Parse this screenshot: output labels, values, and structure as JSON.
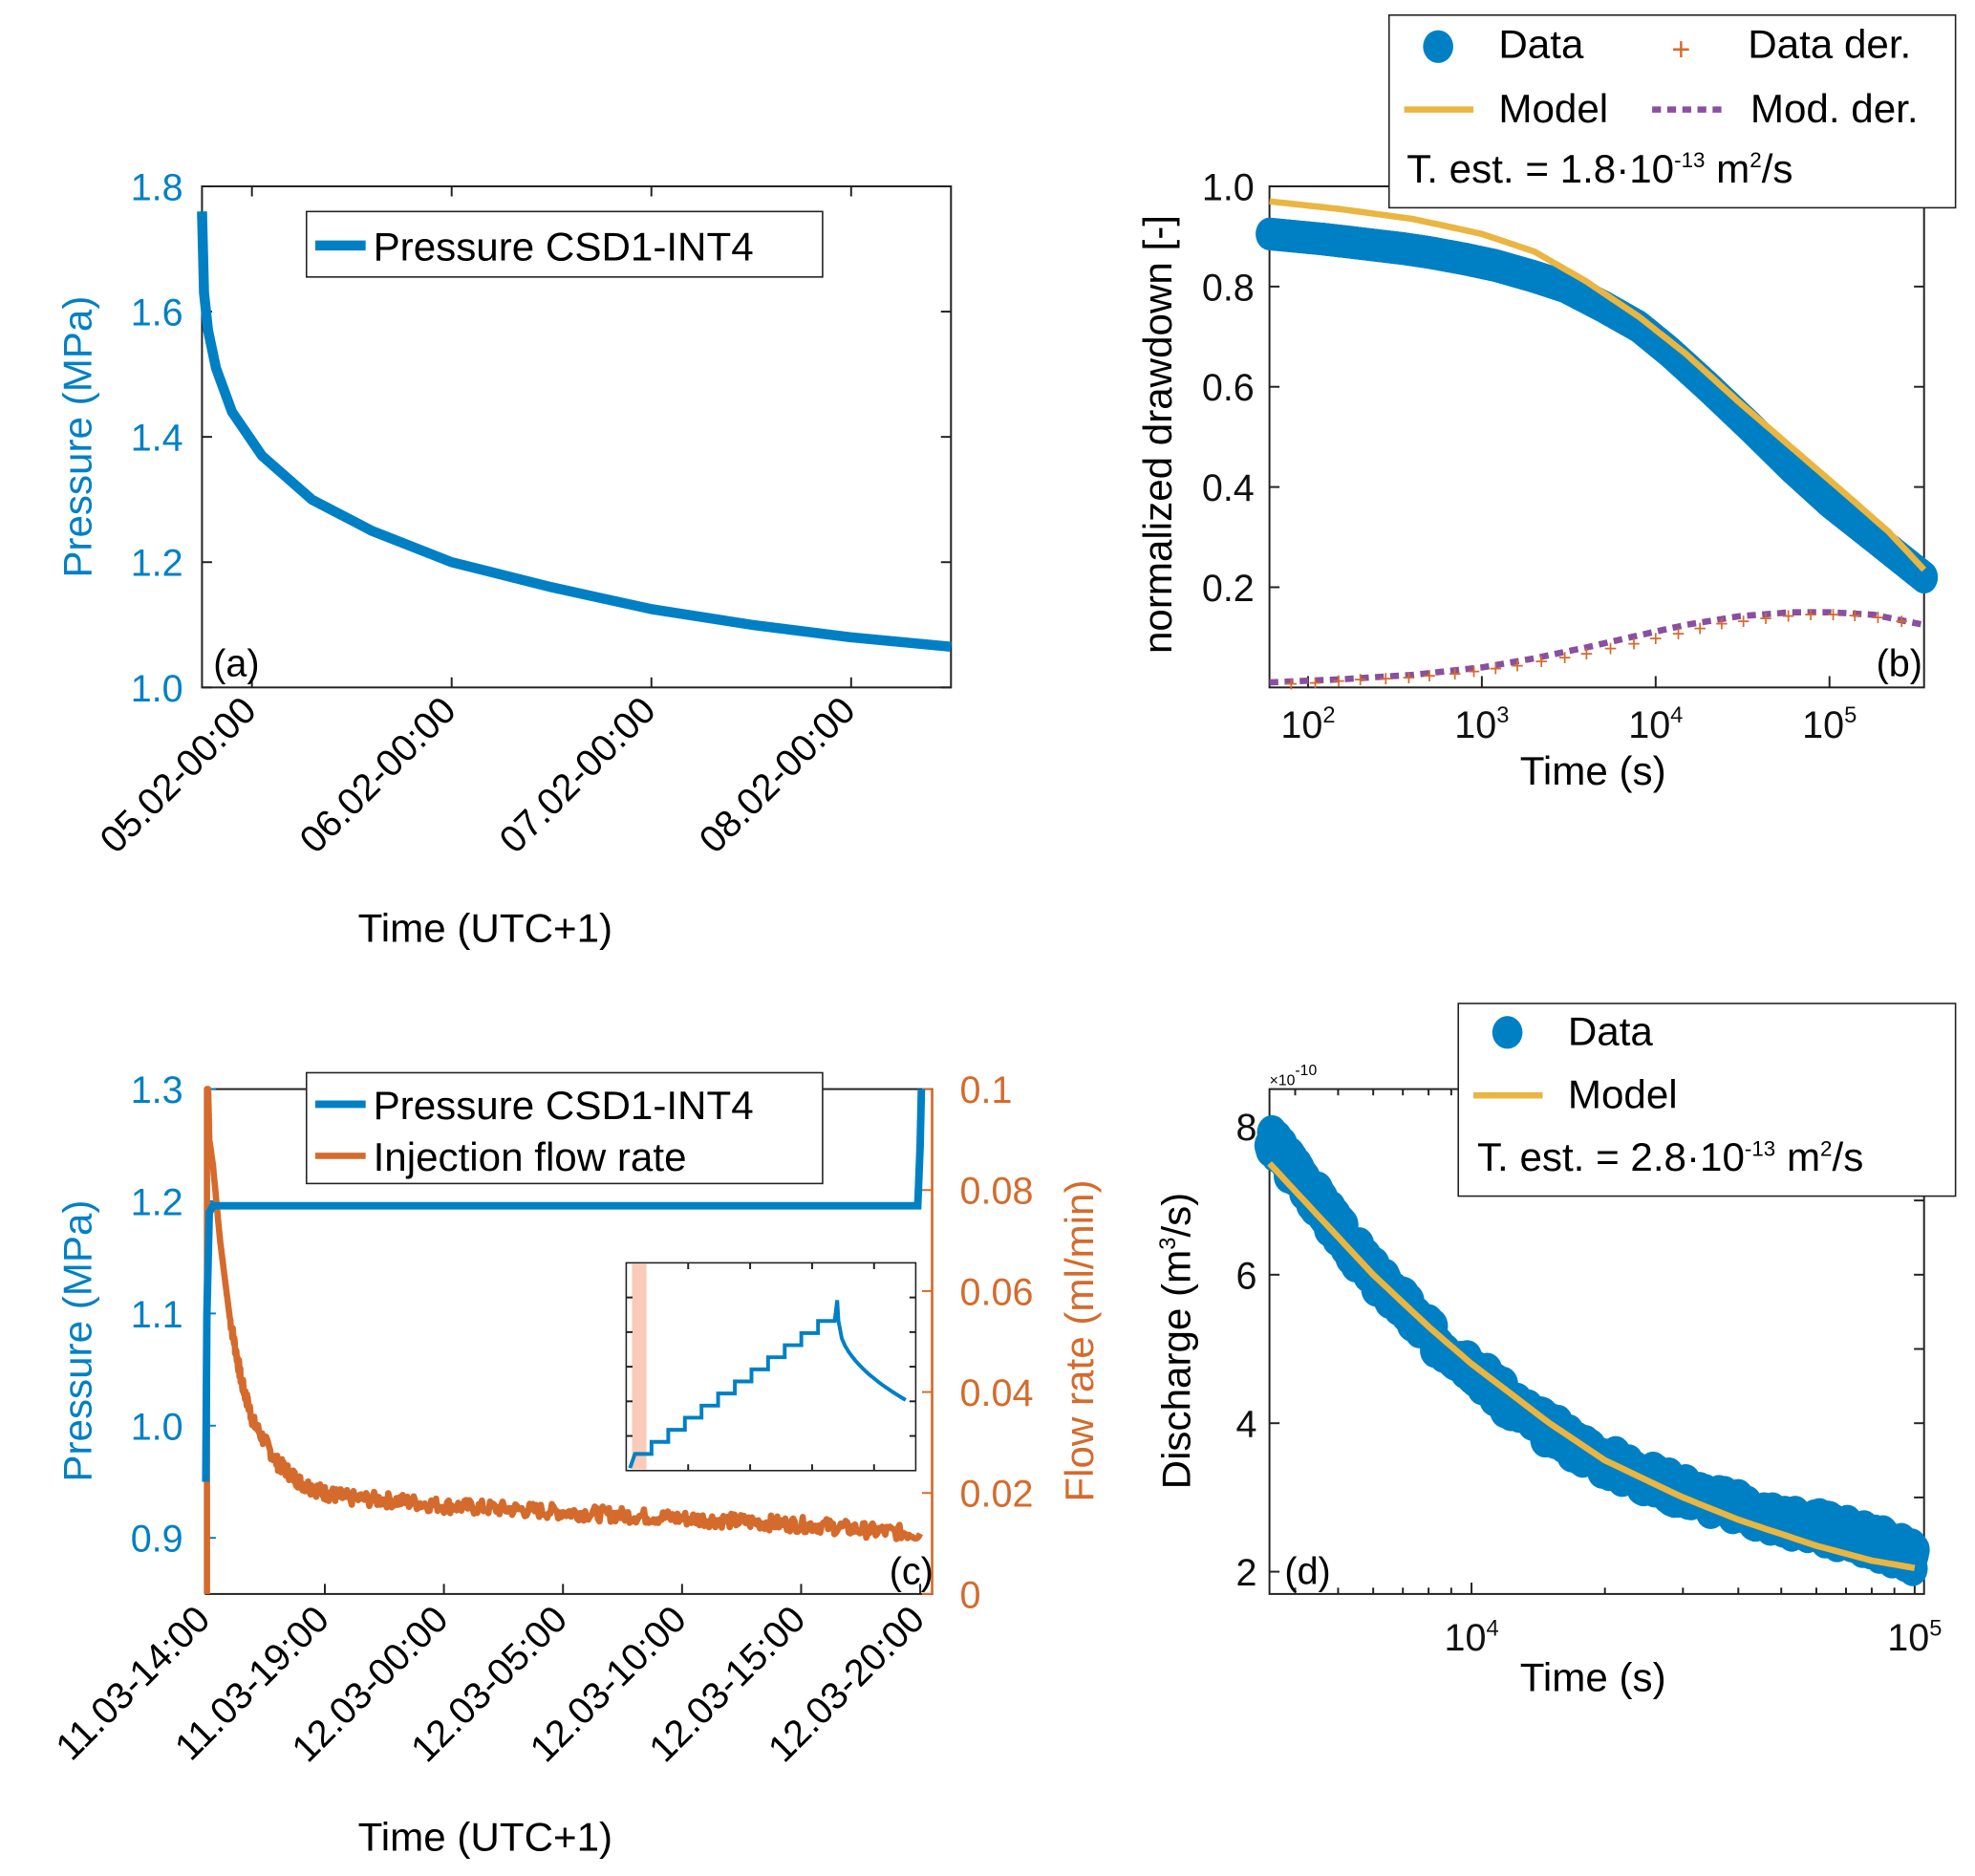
{
  "colors": {
    "blue": "#0080c4",
    "orange": "#d46b2c",
    "yellow": "#eab541",
    "purple": "#8a4f9e",
    "inset_highlight": "#f9cbb8",
    "axis": "#222222"
  },
  "chart_data": [
    {
      "id": "a",
      "type": "line",
      "panel_label": "(a)",
      "xlabel": "Time (UTC+1)",
      "ylabel": "Pressure (MPa)",
      "ylim": [
        1.0,
        1.8
      ],
      "yticks": [
        "1.0",
        "1.2",
        "1.4",
        "1.6",
        "1.8"
      ],
      "yticks_values": [
        1.0,
        1.2,
        1.4,
        1.6,
        1.8
      ],
      "xlim_days": [
        4.25,
        8.0
      ],
      "xticks": [
        "05.02-00:00",
        "06.02-00:00",
        "07.02-00:00",
        "08.02-00:00"
      ],
      "xticks_values": [
        4.5,
        5.5,
        6.5,
        7.5
      ],
      "legend": [
        "Pressure CSD1-INT4"
      ],
      "legend_position": "top",
      "series": [
        {
          "name": "Pressure CSD1-INT4",
          "color_key": "blue",
          "x": [
            4.25,
            4.26,
            4.28,
            4.32,
            4.4,
            4.55,
            4.8,
            5.1,
            5.5,
            6.0,
            6.5,
            7.0,
            7.5,
            8.0
          ],
          "y": [
            1.76,
            1.63,
            1.57,
            1.51,
            1.44,
            1.37,
            1.3,
            1.25,
            1.2,
            1.16,
            1.125,
            1.1,
            1.08,
            1.065
          ]
        }
      ]
    },
    {
      "id": "b",
      "type": "scatter",
      "panel_label": "(b)",
      "xlabel": "Time (s)",
      "ylabel": "normalized drawdown [-]",
      "xscale": "log",
      "xlim": [
        60,
        350000
      ],
      "ylim": [
        0.0,
        1.0
      ],
      "yticks": [
        "0.2",
        "0.4",
        "0.6",
        "0.8",
        "1.0"
      ],
      "yticks_values": [
        0.2,
        0.4,
        0.6,
        0.8,
        1.0
      ],
      "xticks_exp": [
        "2",
        "3",
        "4",
        "5"
      ],
      "xticks_values": [
        100,
        1000,
        10000,
        100000
      ],
      "legend": [
        "Data",
        "Data der.",
        "Model",
        "Mod. der."
      ],
      "legend_position": "top-right",
      "annotation": {
        "prefix": "T. est. = 1.8·10",
        "exp": "-13",
        "unit_base": " m",
        "unit_exp": "2",
        "unit_suffix": "/s"
      },
      "series": [
        {
          "name": "Data",
          "color_key": "blue",
          "x": [
            60,
            120,
            180,
            250,
            350,
            500,
            800,
            1200,
            2000,
            3000,
            5000,
            8000,
            12000,
            20000,
            35000,
            60000,
            100000,
            180000,
            350000
          ],
          "y": [
            0.905,
            0.895,
            0.888,
            0.882,
            0.876,
            0.868,
            0.855,
            0.842,
            0.82,
            0.8,
            0.76,
            0.72,
            0.67,
            0.6,
            0.52,
            0.44,
            0.37,
            0.3,
            0.22
          ]
        },
        {
          "name": "Model",
          "color_key": "yellow",
          "x": [
            60,
            150,
            400,
            1000,
            2000,
            4000,
            8000,
            15000,
            30000,
            60000,
            120000,
            220000,
            350000
          ],
          "y": [
            0.97,
            0.955,
            0.935,
            0.905,
            0.87,
            0.81,
            0.74,
            0.665,
            0.57,
            0.48,
            0.39,
            0.31,
            0.235
          ]
        },
        {
          "name": "Data der.",
          "color_key": "orange",
          "x": [
            80,
            110,
            150,
            200,
            280,
            380,
            500,
            700,
            900,
            1200,
            1600,
            2200,
            3000,
            4000,
            5500,
            7500,
            10000,
            13500,
            18000,
            24000,
            32000,
            43000,
            58000,
            78000,
            105000,
            140000,
            190000,
            260000
          ],
          "y": [
            0.01,
            0.012,
            0.015,
            0.018,
            0.02,
            0.022,
            0.026,
            0.03,
            0.034,
            0.04,
            0.046,
            0.054,
            0.062,
            0.07,
            0.08,
            0.09,
            0.1,
            0.11,
            0.12,
            0.13,
            0.135,
            0.14,
            0.145,
            0.148,
            0.148,
            0.146,
            0.142,
            0.135
          ]
        },
        {
          "name": "Mod. der.",
          "color_key": "purple",
          "x": [
            60,
            150,
            400,
            1000,
            2000,
            4000,
            8000,
            15000,
            30000,
            60000,
            100000,
            180000,
            350000
          ],
          "y": [
            0.01,
            0.016,
            0.025,
            0.04,
            0.058,
            0.08,
            0.104,
            0.125,
            0.142,
            0.15,
            0.15,
            0.145,
            0.125
          ]
        }
      ]
    },
    {
      "id": "c",
      "type": "line",
      "panel_label": "(c)",
      "xlabel": "Time (UTC+1)",
      "ylabel_left": "Pressure (MPa)",
      "ylabel_right": "Flow rate (ml/min)",
      "ylim_left": [
        0.85,
        1.3
      ],
      "ylim_right": [
        0.0,
        0.1
      ],
      "yticks_left": [
        "0.9",
        "1.0",
        "1.1",
        "1.2",
        "1.3"
      ],
      "yticks_left_values": [
        0.9,
        1.0,
        1.1,
        1.2,
        1.3
      ],
      "yticks_right": [
        "0",
        "0.02",
        "0.04",
        "0.06",
        "0.08",
        "0.1"
      ],
      "yticks_right_values": [
        0,
        0.02,
        0.04,
        0.06,
        0.08,
        0.1
      ],
      "xlim_hours": [
        14,
        44.5
      ],
      "xticks": [
        "11.03-14:00",
        "11.03-19:00",
        "12.03-00:00",
        "12.03-05:00",
        "12.03-10:00",
        "12.03-15:00",
        "12.03-20:00"
      ],
      "xticks_values": [
        14,
        19,
        24,
        29,
        34,
        39,
        44
      ],
      "legend": [
        "Pressure CSD1-INT4",
        "Injection flow rate"
      ],
      "legend_position": "top",
      "series": [
        {
          "name": "Pressure CSD1-INT4",
          "axis": "left",
          "color_key": "blue",
          "x": [
            14.0,
            14.05,
            14.15,
            14.3,
            43.9,
            44.0,
            44.05
          ],
          "y": [
            0.95,
            1.1,
            1.19,
            1.196,
            1.196,
            1.25,
            1.3
          ]
        },
        {
          "name": "Injection flow rate",
          "axis": "right",
          "color_key": "orange",
          "x": [
            14.1,
            14.15,
            14.3,
            14.6,
            15.0,
            15.5,
            16.0,
            17.0,
            18.0,
            19.0,
            20.0,
            22.0,
            24.0,
            26.0,
            28.0,
            30.0,
            32.0,
            34.0,
            36.0,
            38.0,
            40.0,
            42.0,
            44.0
          ],
          "y": [
            0.1,
            0.09,
            0.085,
            0.07,
            0.055,
            0.042,
            0.034,
            0.026,
            0.022,
            0.02,
            0.019,
            0.0185,
            0.0175,
            0.017,
            0.0165,
            0.016,
            0.0155,
            0.015,
            0.0145,
            0.014,
            0.0135,
            0.0125,
            0.012
          ]
        }
      ],
      "inset": {
        "series": {
          "name": "Pressure steps",
          "color_key": "blue",
          "steps": 12,
          "peak_fraction": 0.82,
          "end_fraction": 0.34
        },
        "highlight_fraction": [
          0.02,
          0.07
        ]
      }
    },
    {
      "id": "d",
      "type": "scatter",
      "panel_label": "(d)",
      "xlabel": "Time (s)",
      "ylabel": "Discharge (m³/s)",
      "ylabel_base": "Discharge (m",
      "ylabel_exp": "3",
      "ylabel_suffix": "/s)",
      "xscale": "log",
      "xlim": [
        3500,
        105000
      ],
      "ylim": [
        1.7,
        8.5
      ],
      "yscale_factor": "×10",
      "yscale_exp": "-10",
      "yticks": [
        "2",
        "4",
        "6",
        "8"
      ],
      "yticks_values": [
        2,
        4,
        6,
        8
      ],
      "xticks_exp": [
        "4",
        "5"
      ],
      "xticks_values": [
        10000,
        100000
      ],
      "legend": [
        "Data",
        "Model"
      ],
      "legend_position": "top-right",
      "annotation": {
        "prefix": "T. est. = 2.8·10",
        "exp": "-13",
        "unit_base": " m",
        "unit_exp": "2",
        "unit_suffix": "/s"
      },
      "series": [
        {
          "name": "Data",
          "color_key": "blue",
          "x": [
            3500,
            4000,
            4500,
            5000,
            6000,
            7000,
            8000,
            10000,
            12000,
            15000,
            20000,
            25000,
            30000,
            40000,
            50000,
            60000,
            70000,
            80000,
            90000,
            100000
          ],
          "y": [
            7.8,
            7.4,
            7.0,
            6.6,
            6.0,
            5.6,
            5.2,
            4.8,
            4.3,
            3.9,
            3.5,
            3.25,
            3.1,
            2.85,
            2.7,
            2.6,
            2.5,
            2.4,
            2.3,
            2.2
          ]
        },
        {
          "name": "Model",
          "color_key": "yellow",
          "x": [
            3500,
            4500,
            6000,
            8000,
            10000,
            15000,
            20000,
            30000,
            40000,
            60000,
            80000,
            100000
          ],
          "y": [
            7.5,
            6.8,
            6.0,
            5.3,
            4.8,
            4.0,
            3.5,
            3.0,
            2.7,
            2.35,
            2.15,
            2.05
          ]
        }
      ]
    }
  ]
}
